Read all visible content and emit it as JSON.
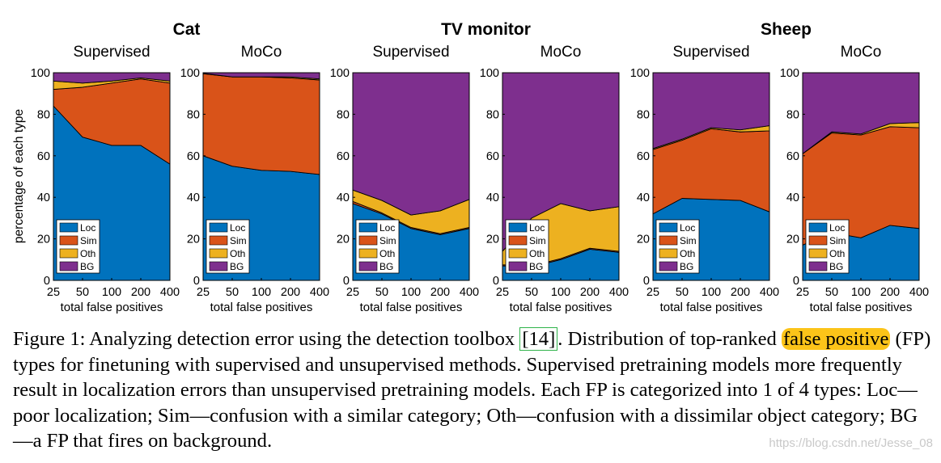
{
  "chart_data": {
    "type": "area",
    "stacked": true,
    "ylabel": "percentage of each type",
    "xlabel": "total false positives",
    "categories": [
      "25",
      "50",
      "100",
      "200",
      "400"
    ],
    "ylim": [
      0,
      100
    ],
    "yticks": [
      "0",
      "20",
      "40",
      "60",
      "80",
      "100"
    ],
    "legend": {
      "placement": "bottom-left",
      "entries": [
        "Loc",
        "Sim",
        "Oth",
        "BG"
      ]
    },
    "colors": {
      "Loc": "#0072bd",
      "Sim": "#d95319",
      "Oth": "#edb120",
      "BG": "#7e2f8e"
    },
    "groups": [
      {
        "title": "Cat",
        "panels": [
          0,
          1
        ]
      },
      {
        "title": "TV monitor",
        "panels": [
          2,
          3
        ]
      },
      {
        "title": "Sheep",
        "panels": [
          4,
          5
        ]
      }
    ],
    "panels": [
      {
        "subtitle": "Supervised",
        "series": [
          {
            "name": "Loc",
            "values": [
              84,
              69,
              65,
              65,
              56
            ]
          },
          {
            "name": "Sim",
            "values": [
              8,
              24,
              30,
              32,
              39
            ]
          },
          {
            "name": "Oth",
            "values": [
              4,
              2,
              1,
              0.5,
              1
            ]
          },
          {
            "name": "BG",
            "values": [
              4,
              5,
              4,
              2.5,
              4
            ]
          }
        ]
      },
      {
        "subtitle": "MoCo",
        "series": [
          {
            "name": "Loc",
            "values": [
              60,
              55,
              53,
              52.5,
              51
            ]
          },
          {
            "name": "Sim",
            "values": [
              39.5,
              43,
              45,
              45,
              45.5
            ]
          },
          {
            "name": "Oth",
            "values": [
              0.2,
              0,
              0,
              0.5,
              0.5
            ]
          },
          {
            "name": "BG",
            "values": [
              0.3,
              2,
              2,
              2,
              3
            ]
          }
        ]
      },
      {
        "subtitle": "Supervised",
        "series": [
          {
            "name": "Loc",
            "values": [
              37,
              32,
              25,
              22,
              25
            ]
          },
          {
            "name": "Sim",
            "values": [
              1,
              0.5,
              0.5,
              0.5,
              0.5
            ]
          },
          {
            "name": "Oth",
            "values": [
              5.5,
              6,
              6,
              11,
              13.5
            ]
          },
          {
            "name": "BG",
            "values": [
              56.5,
              61.5,
              68.5,
              66.5,
              61
            ]
          }
        ]
      },
      {
        "subtitle": "MoCo",
        "series": [
          {
            "name": "Loc",
            "values": [
              7,
              6.5,
              10,
              15,
              13.5
            ]
          },
          {
            "name": "Sim",
            "values": [
              0.5,
              0.5,
              0.5,
              0.5,
              0.5
            ]
          },
          {
            "name": "Oth",
            "values": [
              6.5,
              23,
              26.5,
              18,
              21.5
            ]
          },
          {
            "name": "BG",
            "values": [
              86,
              70,
              63,
              66.5,
              64.5
            ]
          }
        ]
      },
      {
        "subtitle": "Supervised",
        "series": [
          {
            "name": "Loc",
            "values": [
              32,
              39.5,
              39,
              38.5,
              33
            ]
          },
          {
            "name": "Sim",
            "values": [
              31,
              28,
              34,
              33,
              39
            ]
          },
          {
            "name": "Oth",
            "values": [
              0.5,
              0.5,
              0.5,
              1,
              2.5
            ]
          },
          {
            "name": "BG",
            "values": [
              36.5,
              32,
              26.5,
              27.5,
              25.5
            ]
          }
        ]
      },
      {
        "subtitle": "MoCo",
        "series": [
          {
            "name": "Loc",
            "values": [
              17,
              23,
              20.5,
              26.5,
              25
            ]
          },
          {
            "name": "Sim",
            "values": [
              44,
              48,
              49.5,
              47.5,
              48.5
            ]
          },
          {
            "name": "Oth",
            "values": [
              0,
              0.5,
              0.5,
              1.5,
              2.5
            ]
          },
          {
            "name": "BG",
            "values": [
              39,
              28.5,
              29.5,
              24.5,
              24
            ]
          }
        ]
      }
    ]
  },
  "caption": {
    "part1": "Figure 1: Analyzing detection error using the detection toolbox ",
    "ref": "[14]",
    "part2": ". Distribution of top-ranked ",
    "highlight": "false positive",
    "part3": " (FP) types for finetuning with supervised and unsupervised methods. Supervised pretraining models more frequently result in localization errors than unsupervised pretraining models. Each FP is categorized into 1 of 4 types: Loc—poor localization; Sim—confusion with a similar category; Oth—confusion with a dissimilar object category; BG—a FP that fires on background."
  },
  "watermark": "https://blog.csdn.net/Jesse_08"
}
